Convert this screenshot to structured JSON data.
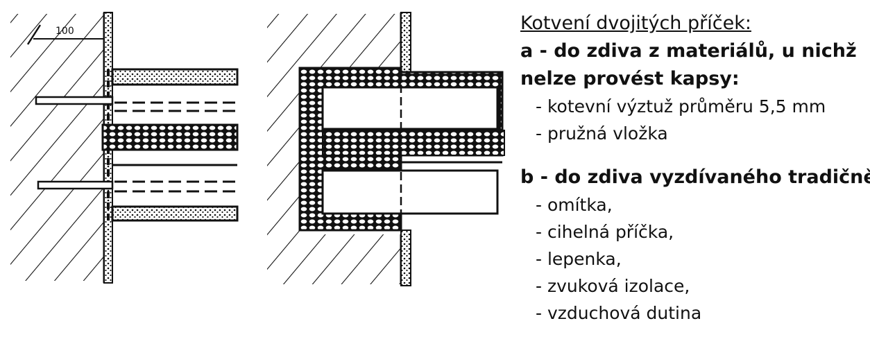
{
  "figure": {
    "dimension_label": "100"
  },
  "legend": {
    "title": "Kotvení dvojitých příček:",
    "section_a": {
      "heading_line1": "a - do zdiva z materiálů, u nichž",
      "heading_line2": "nelze provést kapsy:",
      "items": [
        "- kotevní výztuž průměru 5,5 mm",
        "- pružná vložka"
      ]
    },
    "section_b": {
      "heading": "b - do zdiva vyzdívaného tradičně:",
      "items": [
        "- omítka,",
        "- cihelná příčka,",
        "- lepenka,",
        "- zvuková izolace,",
        "- vzduchová dutina"
      ]
    }
  }
}
